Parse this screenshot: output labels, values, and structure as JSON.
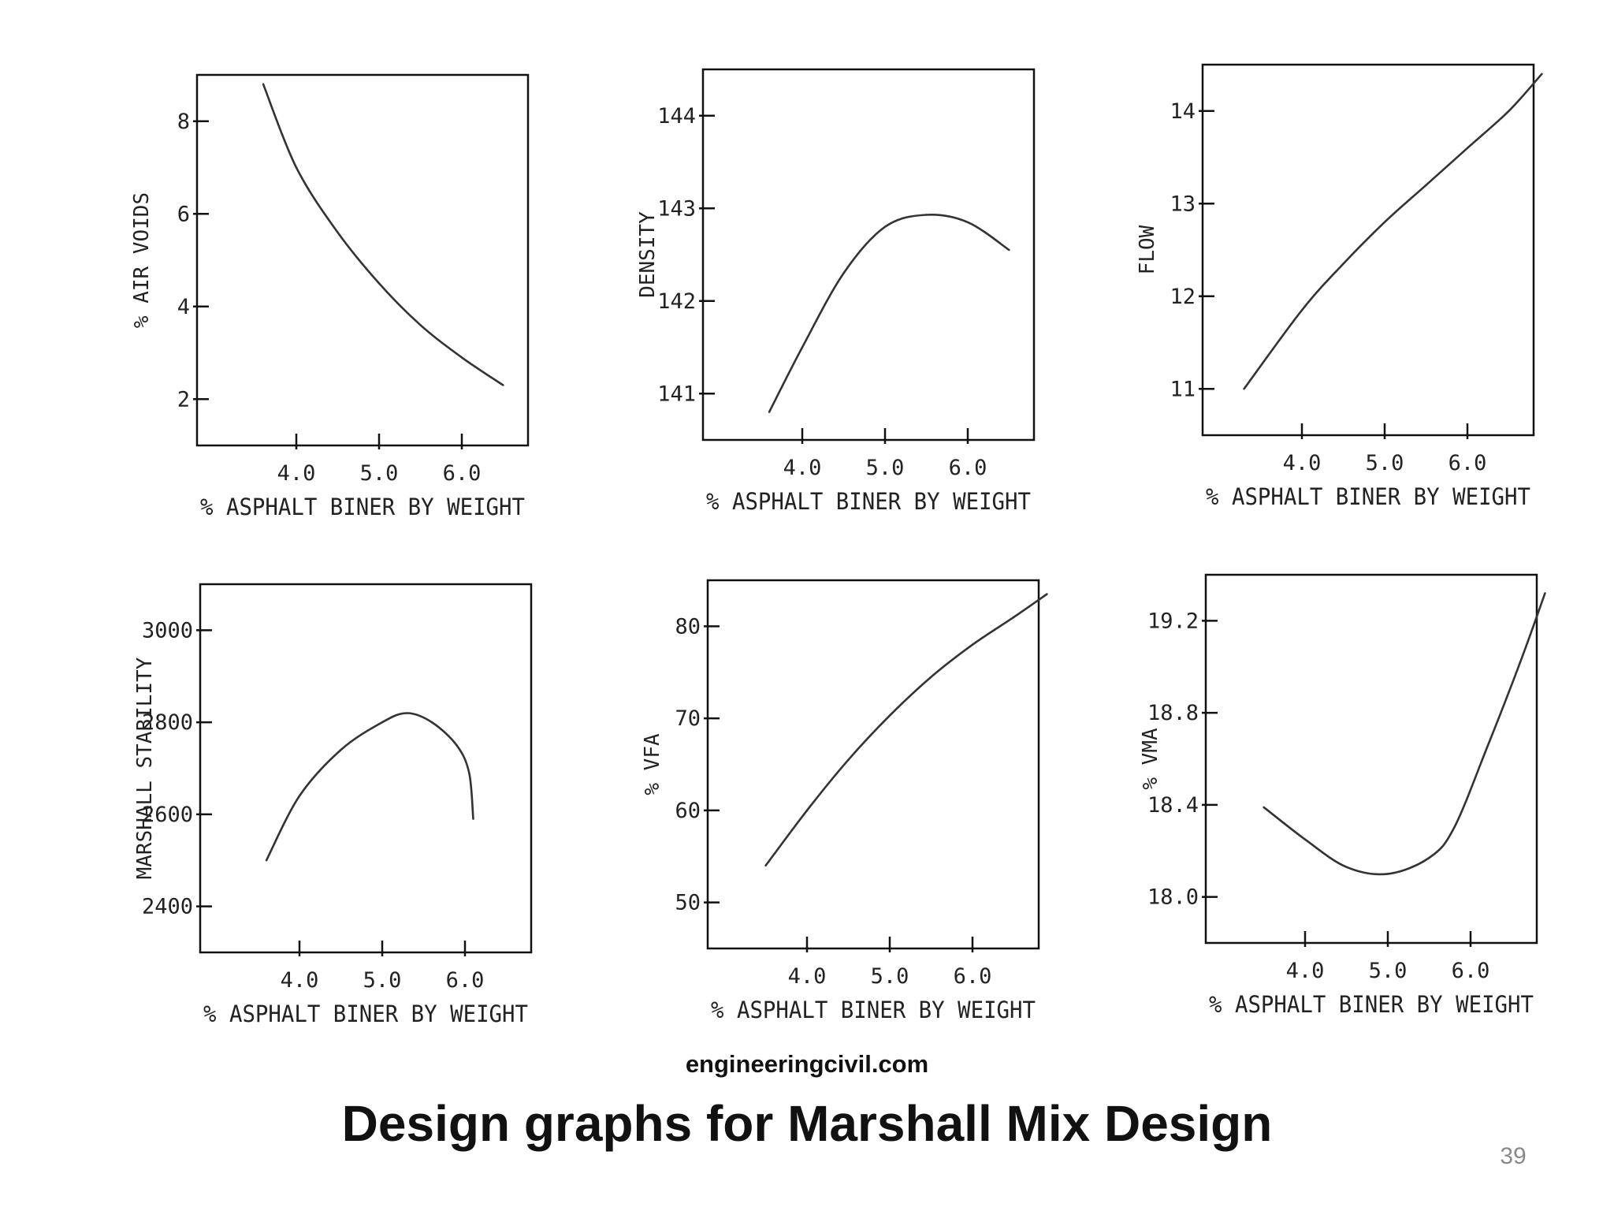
{
  "source": "engineeringcivil.com",
  "title": "Design graphs for Marshall Mix Design",
  "page_number": "39",
  "chart_data": [
    {
      "type": "line",
      "ylabel": "% AIR VOIDS",
      "xlabel": "% ASPHALT BINER BY WEIGHT",
      "xticks": [
        "4.0",
        "5.0",
        "6.0"
      ],
      "yticks": [
        "2",
        "4",
        "6",
        "8"
      ],
      "xlim": [
        2.8,
        6.8
      ],
      "ylim": [
        1.0,
        9.0
      ],
      "series": [
        {
          "x": [
            3.6,
            4.0,
            4.5,
            5.0,
            5.5,
            6.0,
            6.5
          ],
          "y": [
            8.8,
            7.0,
            5.6,
            4.5,
            3.6,
            2.9,
            2.3
          ]
        }
      ]
    },
    {
      "type": "line",
      "ylabel": "DENSITY",
      "xlabel": "% ASPHALT BINER BY WEIGHT",
      "xticks": [
        "4.0",
        "5.0",
        "6.0"
      ],
      "yticks": [
        "141",
        "142",
        "143",
        "144"
      ],
      "xlim": [
        2.8,
        6.8
      ],
      "ylim": [
        140.5,
        144.5
      ],
      "series": [
        {
          "x": [
            3.6,
            4.0,
            4.5,
            5.0,
            5.5,
            6.0,
            6.5
          ],
          "y": [
            140.8,
            141.5,
            142.3,
            142.8,
            142.93,
            142.85,
            142.55
          ]
        }
      ]
    },
    {
      "type": "line",
      "ylabel": "FLOW",
      "xlabel": "% ASPHALT BINER BY WEIGHT",
      "xticks": [
        "4.0",
        "5.0",
        "6.0"
      ],
      "yticks": [
        "11",
        "12",
        "13",
        "14"
      ],
      "xlim": [
        2.8,
        6.8
      ],
      "ylim": [
        10.5,
        14.5
      ],
      "series": [
        {
          "x": [
            3.3,
            4.0,
            4.5,
            5.0,
            5.5,
            6.0,
            6.5,
            6.9
          ],
          "y": [
            11.0,
            11.85,
            12.35,
            12.8,
            13.2,
            13.6,
            14.0,
            14.4
          ]
        }
      ]
    },
    {
      "type": "line",
      "ylabel": "MARSHALL STABILITY",
      "xlabel": "% ASPHALT BINER BY WEIGHT",
      "xticks": [
        "4.0",
        "5.0",
        "6.0"
      ],
      "yticks": [
        "2400",
        "2600",
        "2800",
        "3000"
      ],
      "xlim": [
        2.8,
        6.8
      ],
      "ylim": [
        2300,
        3100
      ],
      "series": [
        {
          "x": [
            3.6,
            4.0,
            4.5,
            5.0,
            5.3,
            5.6,
            5.9,
            6.05,
            6.1
          ],
          "y": [
            2500,
            2640,
            2740,
            2800,
            2820,
            2800,
            2750,
            2690,
            2590
          ]
        }
      ]
    },
    {
      "type": "line",
      "ylabel": "% VFA",
      "xlabel": "% ASPHALT BINER BY WEIGHT",
      "xticks": [
        "4.0",
        "5.0",
        "6.0"
      ],
      "yticks": [
        "50",
        "60",
        "70",
        "80"
      ],
      "xlim": [
        2.8,
        6.8
      ],
      "ylim": [
        45,
        85
      ],
      "series": [
        {
          "x": [
            3.5,
            4.0,
            4.5,
            5.0,
            5.5,
            6.0,
            6.5,
            6.9
          ],
          "y": [
            54.0,
            60.0,
            65.5,
            70.3,
            74.5,
            78.0,
            81.0,
            83.5
          ]
        }
      ]
    },
    {
      "type": "line",
      "ylabel": "% VMA",
      "xlabel": "% ASPHALT BINER BY WEIGHT",
      "xticks": [
        "4.0",
        "5.0",
        "6.0"
      ],
      "yticks": [
        "18.0",
        "18.4",
        "18.8",
        "19.2"
      ],
      "xlim": [
        2.8,
        6.8
      ],
      "ylim": [
        17.8,
        19.4
      ],
      "series": [
        {
          "x": [
            3.5,
            4.0,
            4.5,
            5.0,
            5.5,
            5.8,
            6.2,
            6.6,
            6.9
          ],
          "y": [
            18.39,
            18.25,
            18.13,
            18.1,
            18.17,
            18.3,
            18.65,
            19.02,
            19.32
          ]
        }
      ]
    }
  ]
}
